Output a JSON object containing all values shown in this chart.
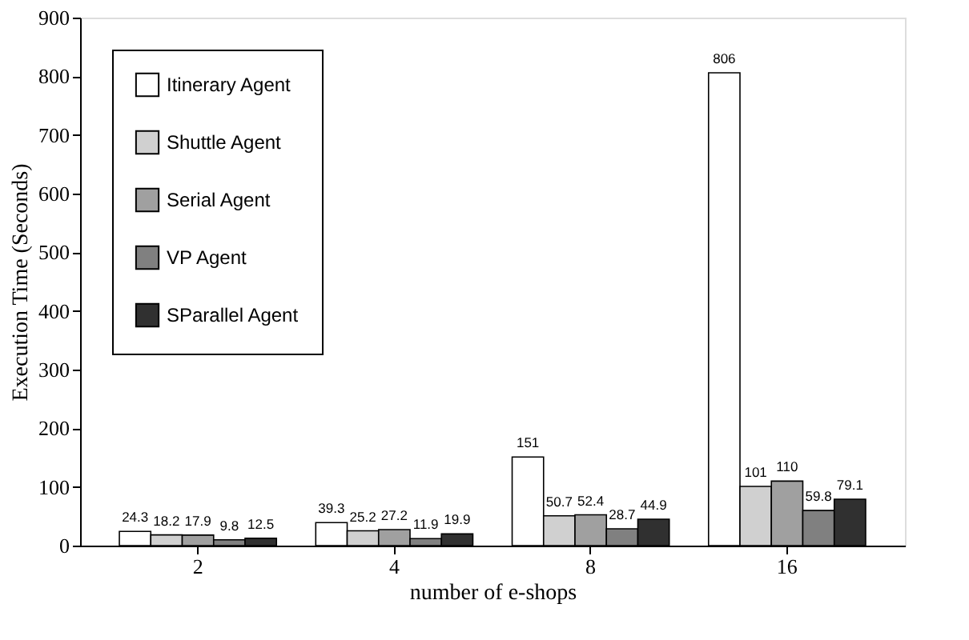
{
  "chart_data": {
    "type": "bar",
    "xlabel": "number of e-shops",
    "ylabel": "Execution Time (Seconds)",
    "categories": [
      "2",
      "4",
      "8",
      "16"
    ],
    "series": [
      {
        "name": "Itinerary Agent",
        "color": "#ffffff",
        "values": [
          24.3,
          39.3,
          151,
          806
        ]
      },
      {
        "name": "Shuttle Agent",
        "color": "#d0d0d0",
        "values": [
          18.2,
          25.2,
          50.7,
          101
        ]
      },
      {
        "name": "Serial Agent",
        "color": "#a0a0a0",
        "values": [
          17.9,
          27.2,
          52.4,
          110
        ]
      },
      {
        "name": "VP Agent",
        "color": "#808080",
        "values": [
          9.8,
          11.9,
          28.7,
          59.8
        ]
      },
      {
        "name": "SParallel Agent",
        "color": "#303030",
        "values": [
          12.5,
          19.9,
          44.9,
          79.1
        ]
      }
    ],
    "ylim": [
      0,
      900
    ],
    "yticks": [
      0,
      100,
      200,
      300,
      400,
      500,
      600,
      700,
      800,
      900
    ],
    "grid": false,
    "legend": "top left",
    "data_labels": true
  }
}
